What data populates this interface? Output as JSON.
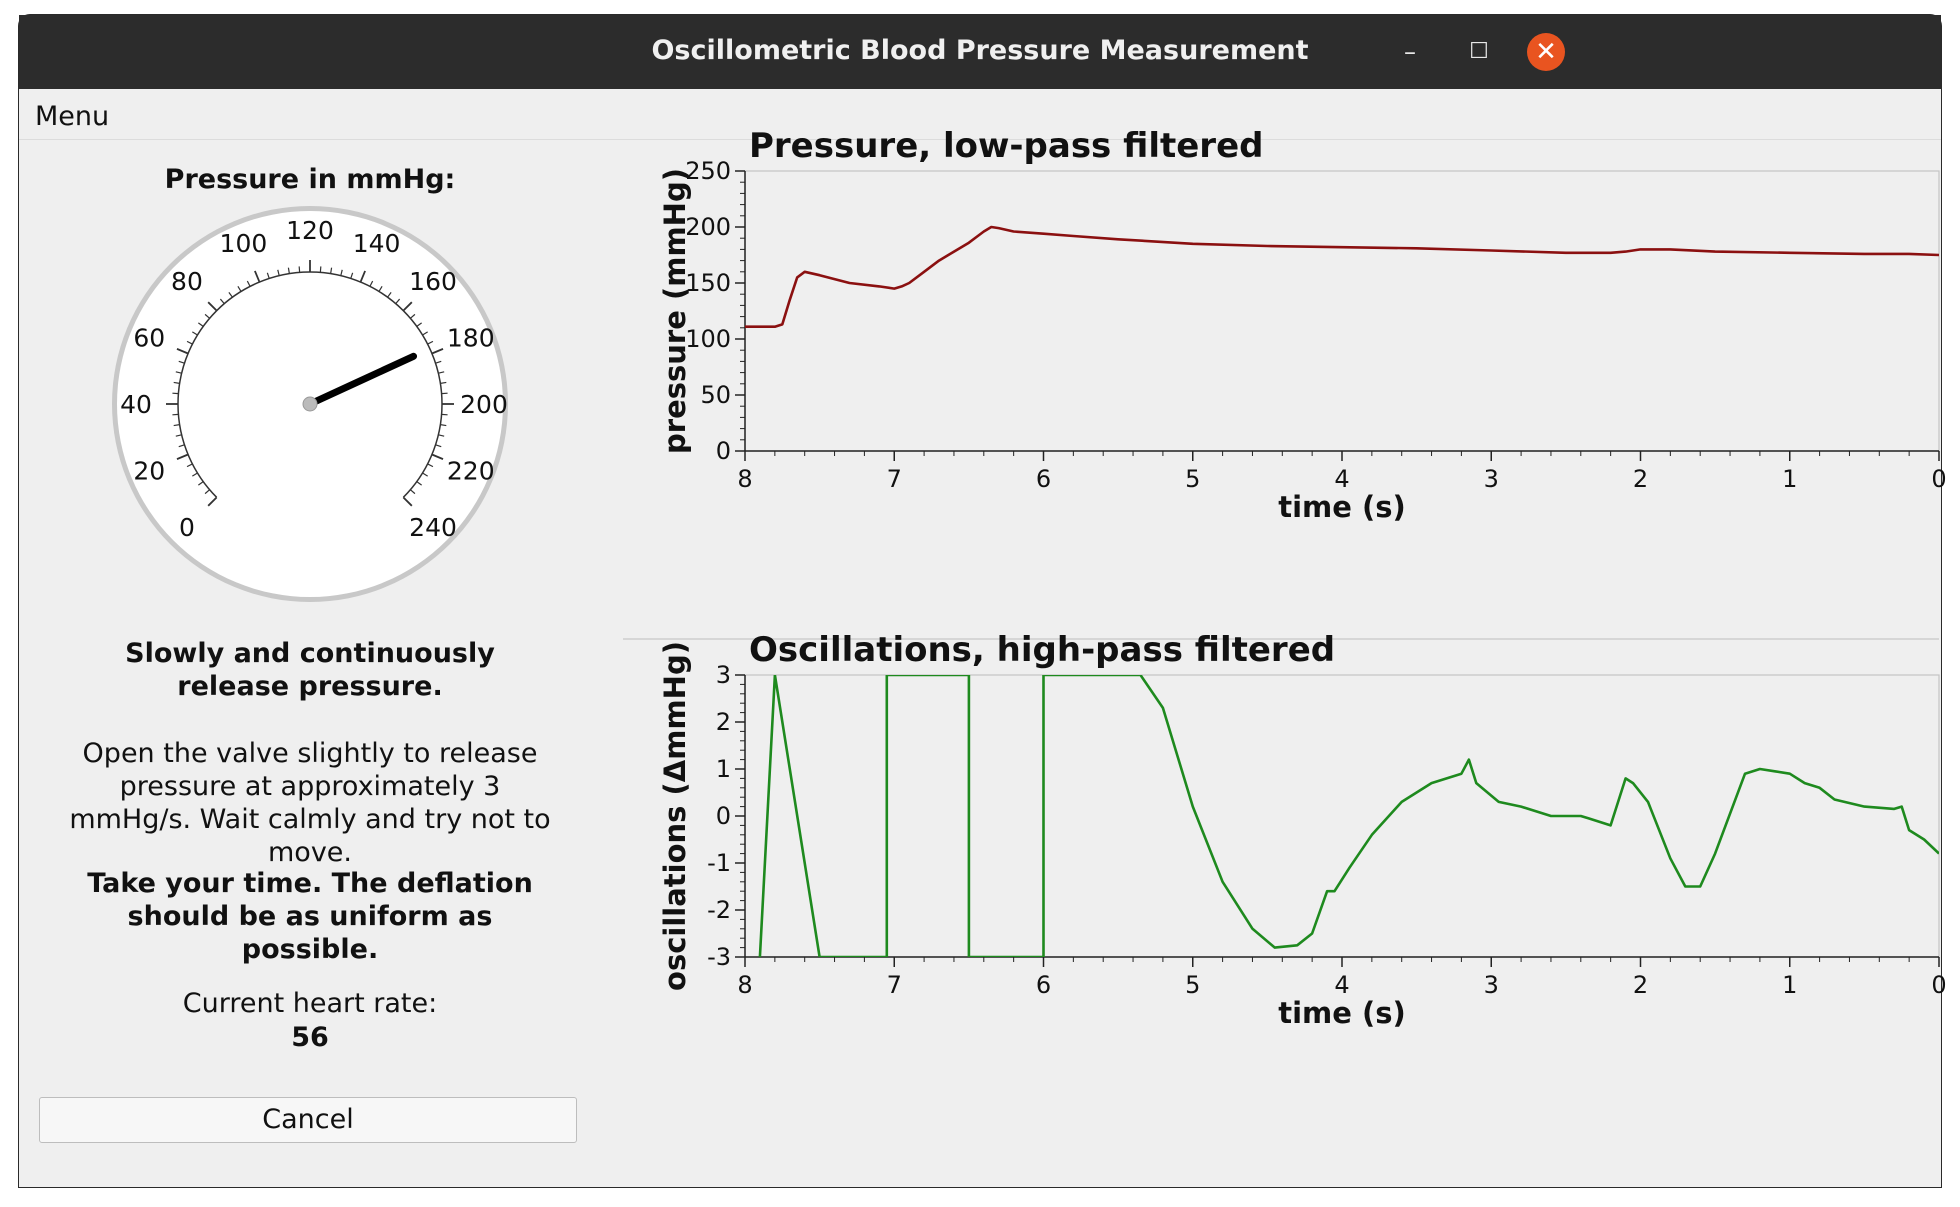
{
  "window": {
    "title": "Oscillometric Blood Pressure Measurement"
  },
  "menu": {
    "label": "Menu"
  },
  "gauge": {
    "title": "Pressure in mmHg:",
    "min": 0,
    "max": 240,
    "major_labels": [
      "0",
      "20",
      "40",
      "60",
      "80",
      "100",
      "120",
      "140",
      "160",
      "180",
      "200",
      "220",
      "240"
    ],
    "value": 178
  },
  "instructions": {
    "title": "Slowly and continuously release pressure.",
    "body": "Open the valve slightly to release pressure at approximately 3 mmHg/s. Wait calmly and try not to move.",
    "note": "Take your time. The deflation should be as uniform as possible."
  },
  "heart_rate": {
    "label": "Current heart rate:",
    "value": "56"
  },
  "cancel": {
    "label": "Cancel"
  },
  "chart_data": [
    {
      "type": "line",
      "title": "Pressure, low-pass filtered",
      "xlabel": "time (s)",
      "ylabel": "pressure (mmHg)",
      "xlim": [
        8,
        0
      ],
      "ylim": [
        0,
        250
      ],
      "xticks": [
        "8",
        "7",
        "6",
        "5",
        "4",
        "3",
        "2",
        "1",
        "0"
      ],
      "yticks": [
        "0",
        "50",
        "100",
        "150",
        "200",
        "250"
      ],
      "color": "#8b1010",
      "x": [
        8.0,
        7.9,
        7.85,
        7.8,
        7.75,
        7.7,
        7.65,
        7.6,
        7.5,
        7.3,
        7.1,
        7.0,
        6.95,
        6.9,
        6.8,
        6.7,
        6.6,
        6.5,
        6.45,
        6.4,
        6.35,
        6.3,
        6.2,
        6.0,
        5.8,
        5.5,
        5.0,
        4.5,
        4.0,
        3.5,
        3.0,
        2.5,
        2.2,
        2.1,
        2.0,
        1.8,
        1.5,
        1.0,
        0.5,
        0.2,
        0.0
      ],
      "y": [
        111,
        111,
        111,
        111,
        113,
        135,
        155,
        160,
        157,
        150,
        147,
        145,
        147,
        150,
        160,
        170,
        178,
        186,
        191,
        196,
        200,
        199,
        196,
        194,
        192,
        189,
        185,
        183,
        182,
        181,
        179,
        177,
        177,
        178,
        180,
        180,
        178,
        177,
        176,
        176,
        175
      ]
    },
    {
      "type": "line",
      "title": "Oscillations, high-pass filtered",
      "xlabel": "time (s)",
      "ylabel": "oscillations (ΔmmHg)",
      "xlim": [
        8,
        0
      ],
      "ylim": [
        -3,
        3
      ],
      "xticks": [
        "8",
        "7",
        "6",
        "5",
        "4",
        "3",
        "2",
        "1",
        "0"
      ],
      "yticks": [
        "-3",
        "-2",
        "-1",
        "0",
        "1",
        "2",
        "3"
      ],
      "color": "#1e8a1e",
      "x": [
        7.9,
        7.8,
        7.8,
        7.5,
        7.48,
        7.46,
        7.44,
        7.42,
        7.4,
        7.38,
        7.36,
        7.34,
        7.32,
        7.3,
        7.2,
        7.05,
        7.05,
        6.5,
        6.5,
        6.0,
        6.0,
        5.35,
        5.35,
        5.2,
        5.0,
        4.8,
        4.6,
        4.45,
        4.3,
        4.2,
        4.1,
        4.05,
        3.95,
        3.8,
        3.6,
        3.4,
        3.2,
        3.15,
        3.1,
        2.95,
        2.8,
        2.6,
        2.4,
        2.35,
        2.2,
        2.1,
        2.05,
        1.95,
        1.8,
        1.7,
        1.6,
        1.5,
        1.3,
        1.2,
        1.1,
        1.0,
        0.9,
        0.8,
        0.7,
        0.5,
        0.3,
        0.25,
        0.2,
        0.1,
        0.0
      ],
      "y": [
        -3,
        3,
        3,
        -3,
        -3,
        -3,
        -3,
        -3,
        -3,
        -3,
        -3,
        -3,
        -3,
        -3,
        -3,
        -3,
        3,
        3,
        -3,
        -3,
        3,
        3,
        3,
        2.3,
        0.2,
        -1.4,
        -2.4,
        -2.8,
        -2.75,
        -2.5,
        -1.6,
        -1.6,
        -1.1,
        -0.4,
        0.3,
        0.7,
        0.9,
        1.2,
        0.7,
        0.3,
        0.2,
        0.0,
        0.0,
        -0.05,
        -0.2,
        0.8,
        0.7,
        0.3,
        -0.9,
        -1.5,
        -1.5,
        -0.8,
        0.9,
        1.0,
        0.95,
        0.9,
        0.7,
        0.6,
        0.35,
        0.2,
        0.15,
        0.2,
        -0.3,
        -0.5,
        -0.8
      ]
    }
  ]
}
